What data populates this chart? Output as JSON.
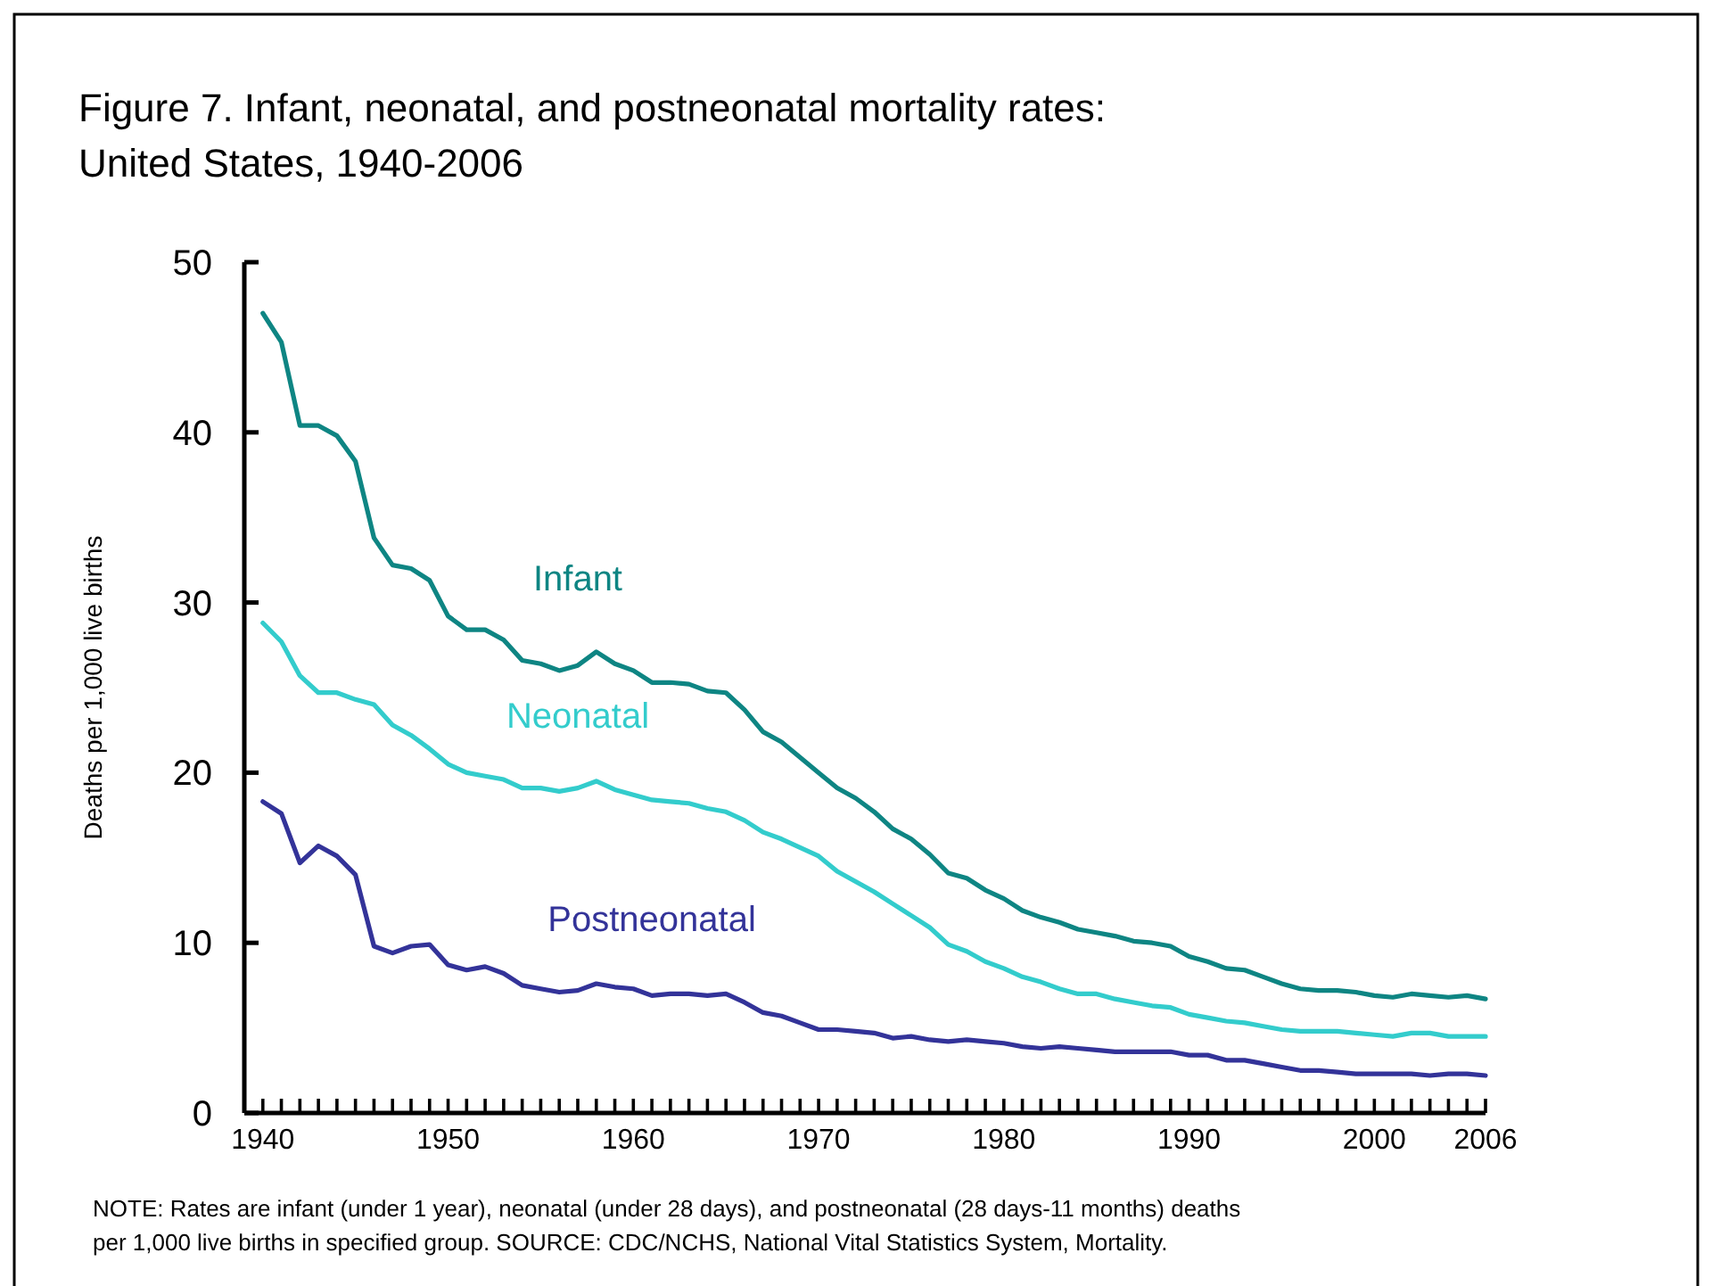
{
  "chart_data": {
    "type": "line",
    "title": "Figure 7. Infant, neonatal, and postneonatal mortality rates:\nUnited States, 1940-2006",
    "ylabel": "Deaths per 1,000 live births",
    "annotations": [
      "NOTE: Rates are infant (under 1 year), neonatal (under 28 days), and postneonatal (28 days-11 months) deaths",
      "per 1,000 live births in specified group.  SOURCE: CDC/NCHS, National Vital Statistics System, Mortality."
    ],
    "x": [
      1940,
      1941,
      1942,
      1943,
      1944,
      1945,
      1946,
      1947,
      1948,
      1949,
      1950,
      1951,
      1952,
      1953,
      1954,
      1955,
      1956,
      1957,
      1958,
      1959,
      1960,
      1961,
      1962,
      1963,
      1964,
      1965,
      1966,
      1967,
      1968,
      1969,
      1970,
      1971,
      1972,
      1973,
      1974,
      1975,
      1976,
      1977,
      1978,
      1979,
      1980,
      1981,
      1982,
      1983,
      1984,
      1985,
      1986,
      1987,
      1988,
      1989,
      1990,
      1991,
      1992,
      1993,
      1994,
      1995,
      1996,
      1997,
      1998,
      1999,
      2000,
      2001,
      2002,
      2003,
      2004,
      2005,
      2006
    ],
    "series": [
      {
        "name": "Infant",
        "color": "#0e8583",
        "values": [
          47.0,
          45.3,
          40.4,
          40.4,
          39.8,
          38.3,
          33.8,
          32.2,
          32.0,
          31.3,
          29.2,
          28.4,
          28.4,
          27.8,
          26.6,
          26.4,
          26.0,
          26.3,
          27.1,
          26.4,
          26.0,
          25.3,
          25.3,
          25.2,
          24.8,
          24.7,
          23.7,
          22.4,
          21.8,
          20.9,
          20.0,
          19.1,
          18.5,
          17.7,
          16.7,
          16.1,
          15.2,
          14.1,
          13.8,
          13.1,
          12.6,
          11.9,
          11.5,
          11.2,
          10.8,
          10.6,
          10.4,
          10.1,
          10.0,
          9.8,
          9.2,
          8.9,
          8.5,
          8.4,
          8.0,
          7.6,
          7.3,
          7.2,
          7.2,
          7.1,
          6.9,
          6.8,
          7.0,
          6.9,
          6.8,
          6.9,
          6.7
        ]
      },
      {
        "name": "Neonatal",
        "color": "#33cccc",
        "values": [
          28.8,
          27.7,
          25.7,
          24.7,
          24.7,
          24.3,
          24.0,
          22.8,
          22.2,
          21.4,
          20.5,
          20.0,
          19.8,
          19.6,
          19.1,
          19.1,
          18.9,
          19.1,
          19.5,
          19.0,
          18.7,
          18.4,
          18.3,
          18.2,
          17.9,
          17.7,
          17.2,
          16.5,
          16.1,
          15.6,
          15.1,
          14.2,
          13.6,
          13.0,
          12.3,
          11.6,
          10.9,
          9.9,
          9.5,
          8.9,
          8.5,
          8.0,
          7.7,
          7.3,
          7.0,
          7.0,
          6.7,
          6.5,
          6.3,
          6.2,
          5.8,
          5.6,
          5.4,
          5.3,
          5.1,
          4.9,
          4.8,
          4.8,
          4.8,
          4.7,
          4.6,
          4.5,
          4.7,
          4.7,
          4.5,
          4.5,
          4.5
        ]
      },
      {
        "name": "Postneonatal",
        "color": "#333399",
        "values": [
          18.3,
          17.6,
          14.7,
          15.7,
          15.1,
          14.0,
          9.8,
          9.4,
          9.8,
          9.9,
          8.7,
          8.4,
          8.6,
          8.2,
          7.5,
          7.3,
          7.1,
          7.2,
          7.6,
          7.4,
          7.3,
          6.9,
          7.0,
          7.0,
          6.9,
          7.0,
          6.5,
          5.9,
          5.7,
          5.3,
          4.9,
          4.9,
          4.8,
          4.7,
          4.4,
          4.5,
          4.3,
          4.2,
          4.3,
          4.2,
          4.1,
          3.9,
          3.8,
          3.9,
          3.8,
          3.7,
          3.6,
          3.6,
          3.6,
          3.6,
          3.4,
          3.4,
          3.1,
          3.1,
          2.9,
          2.7,
          2.5,
          2.5,
          2.4,
          2.3,
          2.3,
          2.3,
          2.3,
          2.2,
          2.3,
          2.3,
          2.2
        ]
      }
    ],
    "xlim": [
      1939,
      2006
    ],
    "xticks": [
      1940,
      {
        "value": 1941,
        "label": null
      },
      {
        "value": 1942,
        "label": null
      },
      {
        "value": 1943,
        "label": null
      },
      {
        "value": 1944,
        "label": null
      },
      {
        "value": 1945,
        "label": null
      },
      {
        "value": 1946,
        "label": null
      },
      {
        "value": 1947,
        "label": null
      },
      {
        "value": 1948,
        "label": null
      },
      {
        "value": 1949,
        "label": null
      },
      1950,
      {
        "value": 1951,
        "label": null
      },
      {
        "value": 1952,
        "label": null
      },
      {
        "value": 1953,
        "label": null
      },
      {
        "value": 1954,
        "label": null
      },
      {
        "value": 1955,
        "label": null
      },
      {
        "value": 1956,
        "label": null
      },
      {
        "value": 1957,
        "label": null
      },
      {
        "value": 1958,
        "label": null
      },
      {
        "value": 1959,
        "label": null
      },
      1960,
      {
        "value": 1961,
        "label": null
      },
      {
        "value": 1962,
        "label": null
      },
      {
        "value": 1963,
        "label": null
      },
      {
        "value": 1964,
        "label": null
      },
      {
        "value": 1965,
        "label": null
      },
      {
        "value": 1966,
        "label": null
      },
      {
        "value": 1967,
        "label": null
      },
      {
        "value": 1968,
        "label": null
      },
      {
        "value": 1969,
        "label": null
      },
      1970,
      {
        "value": 1971,
        "label": null
      },
      {
        "value": 1972,
        "label": null
      },
      {
        "value": 1973,
        "label": null
      },
      {
        "value": 1974,
        "label": null
      },
      {
        "value": 1975,
        "label": null
      },
      {
        "value": 1976,
        "label": null
      },
      {
        "value": 1977,
        "label": null
      },
      {
        "value": 1978,
        "label": null
      },
      {
        "value": 1979,
        "label": null
      },
      1980,
      {
        "value": 1981,
        "label": null
      },
      {
        "value": 1982,
        "label": null
      },
      {
        "value": 1983,
        "label": null
      },
      {
        "value": 1984,
        "label": null
      },
      {
        "value": 1985,
        "label": null
      },
      {
        "value": 1986,
        "label": null
      },
      {
        "value": 1987,
        "label": null
      },
      {
        "value": 1988,
        "label": null
      },
      {
        "value": 1989,
        "label": null
      },
      1990,
      {
        "value": 1991,
        "label": null
      },
      {
        "value": 1992,
        "label": null
      },
      {
        "value": 1993,
        "label": null
      },
      {
        "value": 1994,
        "label": null
      },
      {
        "value": 1995,
        "label": null
      },
      {
        "value": 1996,
        "label": null
      },
      {
        "value": 1997,
        "label": null
      },
      {
        "value": 1998,
        "label": null
      },
      {
        "value": 1999,
        "label": null
      },
      2000,
      {
        "value": 2001,
        "label": null
      },
      {
        "value": 2002,
        "label": null
      },
      {
        "value": 2003,
        "label": null
      },
      {
        "value": 2004,
        "label": null
      },
      {
        "value": 2005,
        "label": null
      },
      2006
    ],
    "ylim": [
      0,
      50
    ],
    "yticks": [
      0,
      10,
      20,
      30,
      40,
      50
    ],
    "line_style": "solid",
    "marker": "none",
    "grid": false
  }
}
